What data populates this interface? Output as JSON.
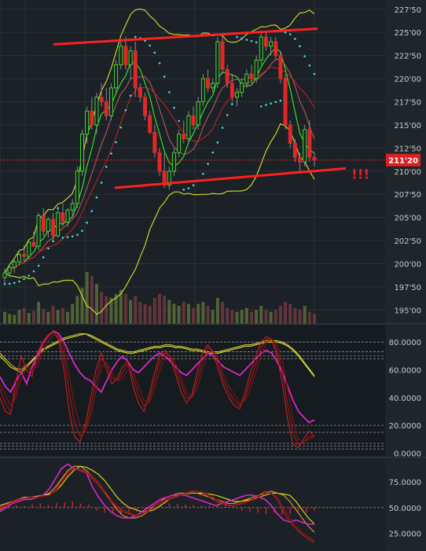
{
  "chart_data": [
    {
      "panel": "price",
      "type": "candlestick",
      "title": "",
      "y_ticks": [
        "227'50",
        "225'00",
        "222'50",
        "220'00",
        "217'50",
        "215'00",
        "212'50",
        "210'00",
        "207'50",
        "205'00",
        "202'50",
        "200'00",
        "197'50",
        "195'00"
      ],
      "y_tick_values": [
        227.5,
        225,
        222.5,
        220,
        217.5,
        215,
        212.5,
        210,
        207.5,
        205,
        202.5,
        200,
        197.5,
        195
      ],
      "ylim": [
        193.5,
        228.5
      ],
      "last_price_label": "211'20",
      "last_price": 211.2,
      "annotation": "!!!",
      "grid": true,
      "candles": [
        [
          198.5,
          199.5,
          197.8,
          199.0
        ],
        [
          199.0,
          200.0,
          198.5,
          199.6
        ],
        [
          199.6,
          200.5,
          199.0,
          200.2
        ],
        [
          200.2,
          201.5,
          199.8,
          201.0
        ],
        [
          201.0,
          202.0,
          200.2,
          200.8
        ],
        [
          200.8,
          202.5,
          200.5,
          202.3
        ],
        [
          202.3,
          203.5,
          201.8,
          201.9
        ],
        [
          201.9,
          205.5,
          201.5,
          205.2
        ],
        [
          205.2,
          206.0,
          203.0,
          203.5
        ],
        [
          203.5,
          205.0,
          202.8,
          204.8
        ],
        [
          204.8,
          205.5,
          202.5,
          203.0
        ],
        [
          203.0,
          206.0,
          202.8,
          205.5
        ],
        [
          205.5,
          206.5,
          204.0,
          204.5
        ],
        [
          204.5,
          206.0,
          204.0,
          205.8
        ],
        [
          205.8,
          207.0,
          205.0,
          206.5
        ],
        [
          206.5,
          210.5,
          206.0,
          210.0
        ],
        [
          210.0,
          214.5,
          209.5,
          214.0
        ],
        [
          214.0,
          217.0,
          213.0,
          216.5
        ],
        [
          216.5,
          218.0,
          214.5,
          215.0
        ],
        [
          215.0,
          218.5,
          214.0,
          218.0
        ],
        [
          218.0,
          219.5,
          217.0,
          217.5
        ],
        [
          217.5,
          219.0,
          215.5,
          216.0
        ],
        [
          216.0,
          219.5,
          215.5,
          219.0
        ],
        [
          219.0,
          222.0,
          218.5,
          221.5
        ],
        [
          221.5,
          224.0,
          221.0,
          223.5
        ],
        [
          223.5,
          224.5,
          221.0,
          221.5
        ],
        [
          221.5,
          223.5,
          220.0,
          223.0
        ],
        [
          223.0,
          224.0,
          218.0,
          219.0
        ],
        [
          219.0,
          219.5,
          217.5,
          218.0
        ],
        [
          218.0,
          218.5,
          215.5,
          216.0
        ],
        [
          216.0,
          216.5,
          214.0,
          214.2
        ],
        [
          214.2,
          215.0,
          211.5,
          212.0
        ],
        [
          212.0,
          212.5,
          209.5,
          210.0
        ],
        [
          210.0,
          212.0,
          208.2,
          208.5
        ],
        [
          208.5,
          210.5,
          208.0,
          210.0
        ],
        [
          210.0,
          212.5,
          209.5,
          212.0
        ],
        [
          212.0,
          214.5,
          211.5,
          214.0
        ],
        [
          214.0,
          215.5,
          213.0,
          213.5
        ],
        [
          213.5,
          216.5,
          213.0,
          216.0
        ],
        [
          216.0,
          217.0,
          214.5,
          215.0
        ],
        [
          215.0,
          218.0,
          214.5,
          217.5
        ],
        [
          217.5,
          220.5,
          217.0,
          220.0
        ],
        [
          220.0,
          221.0,
          218.5,
          219.0
        ],
        [
          219.0,
          220.0,
          218.5,
          219.5
        ],
        [
          219.5,
          224.5,
          219.0,
          224.0
        ],
        [
          224.0,
          224.5,
          220.5,
          221.0
        ],
        [
          221.0,
          221.5,
          219.0,
          219.5
        ],
        [
          219.5,
          220.5,
          217.5,
          218.0
        ],
        [
          218.0,
          219.0,
          217.0,
          218.5
        ],
        [
          218.5,
          220.0,
          218.0,
          219.5
        ],
        [
          219.5,
          221.0,
          219.0,
          220.5
        ],
        [
          220.5,
          221.5,
          219.5,
          220.0
        ],
        [
          220.0,
          222.5,
          219.5,
          222.0
        ],
        [
          222.0,
          225.0,
          221.5,
          224.5
        ],
        [
          224.5,
          225.0,
          223.0,
          223.5
        ],
        [
          223.5,
          224.5,
          222.5,
          224.0
        ],
        [
          224.0,
          224.5,
          222.0,
          222.5
        ],
        [
          222.5,
          223.0,
          219.5,
          220.0
        ],
        [
          220.0,
          220.5,
          214.5,
          215.0
        ],
        [
          215.0,
          215.5,
          212.5,
          213.0
        ],
        [
          213.0,
          213.5,
          211.0,
          211.5
        ],
        [
          211.5,
          212.0,
          210.0,
          211.0
        ],
        [
          211.0,
          215.0,
          210.5,
          214.5
        ],
        [
          214.5,
          215.5,
          211.0,
          211.5
        ],
        [
          211.5,
          212.0,
          210.5,
          211.2
        ]
      ],
      "volume": [
        12,
        10,
        9,
        14,
        16,
        11,
        13,
        22,
        15,
        12,
        18,
        14,
        16,
        12,
        20,
        28,
        36,
        52,
        48,
        40,
        32,
        28,
        26,
        30,
        34,
        30,
        24,
        28,
        22,
        20,
        18,
        26,
        30,
        28,
        24,
        20,
        18,
        22,
        20,
        16,
        20,
        22,
        18,
        14,
        26,
        22,
        16,
        14,
        12,
        14,
        16,
        12,
        14,
        18,
        14,
        12,
        14,
        18,
        22,
        20,
        16,
        14,
        18,
        12,
        10
      ],
      "volume_colors": {
        "up": "#5a6e38",
        "down": "#6e3840"
      },
      "colors": {
        "up": "#3cdc2c",
        "down": "#e02828",
        "wick": "#8a8a8a",
        "trendline": "#ff2020",
        "bollinger": "#c8d22c",
        "ma_inner": "#3cdc2c",
        "ma_outer": "#cc2020",
        "sar": "#3ee0e0",
        "last_price_line": "#e02020"
      }
    },
    {
      "panel": "stochastic",
      "type": "line",
      "y_ticks": [
        "80.0000",
        "60.0000",
        "40.0000",
        "20.0000",
        "0.0000"
      ],
      "y_tick_values": [
        80,
        60,
        40,
        20,
        0
      ],
      "ylim": [
        -2,
        92
      ],
      "levels": [
        80,
        73,
        70,
        68,
        20,
        15,
        7,
        5,
        3
      ],
      "x": "same as price panel",
      "series": [
        {
          "color": "#e8e028",
          "values": [
            70,
            66,
            62,
            60,
            58,
            62,
            66,
            70,
            74,
            76,
            78,
            80,
            82,
            83,
            84,
            85,
            86,
            84,
            82,
            80,
            78,
            76,
            74,
            73,
            72,
            72,
            73,
            74,
            75,
            76,
            76,
            77,
            77,
            76,
            76,
            75,
            74,
            74,
            73,
            72,
            72,
            72,
            73,
            74,
            75,
            76,
            77,
            77,
            78,
            79,
            80,
            80,
            80,
            79,
            77,
            74,
            70,
            65,
            60,
            55
          ]
        },
        {
          "color": "#c8c840",
          "values": [
            72,
            68,
            64,
            61,
            60,
            63,
            67,
            71,
            75,
            77,
            79,
            81,
            83,
            84,
            85,
            86,
            86,
            85,
            83,
            81,
            79,
            77,
            75,
            74,
            73,
            73,
            74,
            75,
            76,
            77,
            77,
            78,
            78,
            77,
            77,
            76,
            75,
            75,
            74,
            73,
            73,
            73,
            74,
            75,
            76,
            77,
            78,
            78,
            79,
            80,
            81,
            81,
            81,
            80,
            78,
            75,
            71,
            66,
            61,
            56
          ]
        },
        {
          "color": "#d828c8",
          "values": [
            55,
            48,
            44,
            52,
            58,
            50,
            62,
            70,
            78,
            84,
            88,
            86,
            80,
            72,
            64,
            58,
            54,
            52,
            48,
            44,
            52,
            60,
            66,
            70,
            66,
            60,
            58,
            62,
            66,
            70,
            72,
            70,
            66,
            62,
            58,
            56,
            60,
            64,
            68,
            72,
            70,
            66,
            62,
            60,
            58,
            56,
            60,
            64,
            68,
            72,
            74,
            72,
            66,
            58,
            48,
            38,
            30,
            26,
            22,
            24
          ]
        },
        {
          "color": "#c81e1e",
          "values": [
            40,
            30,
            28,
            52,
            70,
            60,
            55,
            72,
            80,
            85,
            88,
            82,
            60,
            30,
            12,
            8,
            20,
            40,
            60,
            72,
            60,
            50,
            54,
            62,
            66,
            48,
            36,
            30,
            42,
            58,
            70,
            74,
            68,
            56,
            44,
            36,
            42,
            58,
            72,
            78,
            72,
            60,
            48,
            40,
            34,
            32,
            44,
            58,
            70,
            80,
            84,
            82,
            70,
            50,
            24,
            6,
            4,
            10,
            16,
            12
          ]
        },
        {
          "color": "#a01818",
          "values": [
            46,
            36,
            30,
            44,
            62,
            64,
            58,
            66,
            78,
            84,
            87,
            84,
            70,
            44,
            22,
            12,
            16,
            32,
            52,
            68,
            64,
            54,
            52,
            58,
            64,
            54,
            42,
            34,
            38,
            52,
            66,
            72,
            70,
            60,
            50,
            40,
            40,
            52,
            66,
            76,
            74,
            64,
            52,
            44,
            38,
            34,
            40,
            52,
            64,
            76,
            82,
            82,
            74,
            58,
            34,
            14,
            6,
            8,
            12,
            12
          ]
        },
        {
          "color": "#801414",
          "values": [
            50,
            42,
            34,
            40,
            54,
            62,
            60,
            62,
            72,
            80,
            85,
            85,
            76,
            56,
            34,
            20,
            16,
            26,
            44,
            62,
            66,
            58,
            52,
            54,
            60,
            58,
            48,
            38,
            36,
            46,
            60,
            70,
            70,
            64,
            54,
            44,
            40,
            46,
            60,
            72,
            74,
            68,
            56,
            48,
            42,
            36,
            38,
            46,
            58,
            70,
            80,
            82,
            78,
            66,
            46,
            24,
            10,
            8,
            10,
            12
          ]
        }
      ]
    },
    {
      "panel": "rsi",
      "type": "line",
      "y_ticks": [
        "75.0000",
        "50.0000",
        "25.0000"
      ],
      "y_tick_values": [
        75,
        50,
        25
      ],
      "ylim": [
        8,
        97
      ],
      "levels": [
        50
      ],
      "series": [
        {
          "color": "#e8e028",
          "values": [
            52,
            54,
            56,
            58,
            60,
            60,
            61,
            62,
            63,
            66,
            72,
            80,
            86,
            90,
            89,
            86,
            82,
            76,
            68,
            60,
            54,
            50,
            48,
            46,
            46,
            48,
            52,
            56,
            60,
            62,
            63,
            64,
            64,
            64,
            63,
            62,
            60,
            58,
            56,
            56,
            57,
            58,
            60,
            62,
            64,
            64,
            63,
            62,
            56,
            48,
            40,
            34
          ]
        },
        {
          "color": "#e0a028",
          "values": [
            48,
            52,
            56,
            58,
            60,
            60,
            61,
            62,
            64,
            70,
            78,
            86,
            90,
            90,
            86,
            80,
            74,
            66,
            56,
            48,
            42,
            40,
            40,
            42,
            46,
            52,
            56,
            60,
            62,
            64,
            64,
            64,
            64,
            62,
            60,
            58,
            56,
            54,
            54,
            56,
            58,
            60,
            62,
            64,
            66,
            64,
            62,
            56,
            48,
            40,
            32,
            26
          ]
        },
        {
          "color": "#d828c8",
          "values": [
            46,
            50,
            54,
            56,
            58,
            58,
            60,
            62,
            68,
            78,
            88,
            92,
            88,
            86,
            84,
            70,
            60,
            52,
            46,
            42,
            40,
            40,
            42,
            46,
            50,
            54,
            58,
            60,
            62,
            62,
            62,
            60,
            58,
            56,
            54,
            52,
            54,
            56,
            58,
            60,
            62,
            62,
            60,
            58,
            52,
            44,
            38,
            36,
            38,
            36,
            34,
            34
          ]
        },
        {
          "color": "#c81e1e",
          "values": [
            50,
            53,
            56,
            58,
            59,
            60,
            60,
            61,
            62,
            68,
            76,
            84,
            88,
            86,
            84,
            78,
            72,
            64,
            56,
            50,
            46,
            44,
            42,
            44,
            48,
            52,
            56,
            58,
            60,
            62,
            64,
            66,
            66,
            64,
            60,
            56,
            54,
            52,
            52,
            54,
            56,
            58,
            62,
            66,
            64,
            58,
            46,
            36,
            30,
            24,
            20,
            16
          ]
        },
        {
          "color": "#8c1616",
          "values": [
            49,
            52,
            55,
            57,
            59,
            60,
            60,
            61,
            62,
            66,
            74,
            82,
            87,
            87,
            85,
            80,
            74,
            66,
            58,
            52,
            48,
            45,
            43,
            44,
            46,
            50,
            54,
            57,
            59,
            61,
            63,
            65,
            66,
            65,
            62,
            58,
            55,
            53,
            52,
            53,
            55,
            57,
            60,
            64,
            64,
            60,
            50,
            40,
            32,
            26,
            22,
            18
          ]
        }
      ],
      "histogram": [
        4,
        6,
        5,
        3,
        6,
        8,
        5,
        9,
        10,
        12,
        8,
        6,
        -6,
        -10,
        -12,
        -14,
        -10,
        -8,
        -6,
        4,
        6,
        8,
        7,
        6,
        5,
        4,
        5,
        6,
        7,
        6,
        -6,
        -8,
        -10,
        -12,
        -10,
        -14,
        -12,
        -8,
        -10,
        -6
      ]
    }
  ]
}
